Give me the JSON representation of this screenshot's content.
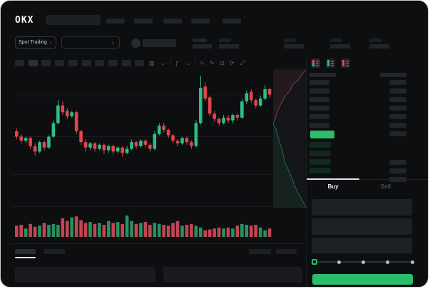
{
  "colors": {
    "window_bg": "#0d0e10",
    "accent_green": "#2abd6e",
    "candle_green": "#2ebd85",
    "candle_red": "#e0464f",
    "volume_green": "#279161",
    "volume_red": "#c44550",
    "grid": "#1a1c1f",
    "skeleton": "#222528",
    "text_primary": "#e8eaec",
    "text_muted": "#4a5056"
  },
  "header": {
    "logo_text": "OKX",
    "nav_item_count": 5,
    "search_placeholder": ""
  },
  "subheader": {
    "market_selector_label": "Spot Trading",
    "chevron": "⌄",
    "stat_block_count": 4
  },
  "chart_toolbar": {
    "timeframe_button_count": 10,
    "active_timeframe_index": 1,
    "icons": [
      {
        "name": "chart-type-candle-icon",
        "glyph": "▥"
      },
      {
        "name": "chevron-down-icon",
        "glyph": "⌄"
      },
      {
        "name": "divider"
      },
      {
        "name": "indicators-icon",
        "glyph": "ƒ"
      },
      {
        "name": "chevron-down-icon",
        "glyph": "⌄"
      },
      {
        "name": "divider"
      },
      {
        "name": "line-tool-icon",
        "glyph": "∿"
      },
      {
        "name": "draw-tool-icon",
        "glyph": "✎"
      },
      {
        "name": "screenshot-icon",
        "glyph": "⊡"
      },
      {
        "name": "refresh-icon",
        "glyph": "⟳"
      },
      {
        "name": "fullscreen-icon",
        "glyph": "⤢"
      }
    ]
  },
  "chart_data": {
    "type": "candlestick",
    "ylim": [
      28,
      100
    ],
    "grid": "horizontal-faint",
    "candles_ohlc": [
      [
        52,
        54,
        46,
        48
      ],
      [
        48,
        50,
        43,
        45
      ],
      [
        45,
        48,
        43,
        47
      ],
      [
        47,
        48,
        39,
        41
      ],
      [
        41,
        43,
        34,
        37
      ],
      [
        37,
        45,
        36,
        44
      ],
      [
        44,
        45,
        38,
        40
      ],
      [
        40,
        49,
        39,
        48
      ],
      [
        48,
        60,
        47,
        58
      ],
      [
        58,
        75,
        57,
        71
      ],
      [
        71,
        74,
        64,
        66
      ],
      [
        67,
        69,
        61,
        63
      ],
      [
        63,
        67,
        62,
        66
      ],
      [
        66,
        67,
        50,
        52
      ],
      [
        52,
        53,
        42,
        44
      ],
      [
        44,
        46,
        37,
        40
      ],
      [
        40,
        44,
        38,
        43
      ],
      [
        43,
        44,
        37,
        39
      ],
      [
        39,
        43,
        38,
        42
      ],
      [
        42,
        43,
        35,
        38
      ],
      [
        38,
        42,
        36,
        41
      ],
      [
        41,
        42,
        35,
        37
      ],
      [
        37,
        41,
        36,
        40
      ],
      [
        40,
        41,
        33,
        36
      ],
      [
        36,
        41,
        35,
        39
      ],
      [
        39,
        46,
        38,
        44
      ],
      [
        44,
        45,
        39,
        41
      ],
      [
        41,
        46,
        40,
        45
      ],
      [
        45,
        46,
        40,
        42
      ],
      [
        42,
        43,
        37,
        39
      ],
      [
        39,
        52,
        38,
        50
      ],
      [
        50,
        58,
        49,
        56
      ],
      [
        56,
        58,
        51,
        53
      ],
      [
        53,
        54,
        47,
        49
      ],
      [
        49,
        50,
        43,
        45
      ],
      [
        45,
        46,
        41,
        43
      ],
      [
        43,
        48,
        42,
        47
      ],
      [
        47,
        48,
        42,
        44
      ],
      [
        44,
        45,
        39,
        41
      ],
      [
        41,
        60,
        40,
        58
      ],
      [
        58,
        93,
        57,
        84
      ],
      [
        85,
        88,
        74,
        76
      ],
      [
        77,
        78,
        63,
        65
      ],
      [
        65,
        67,
        59,
        61
      ],
      [
        61,
        62,
        56,
        58
      ],
      [
        58,
        64,
        57,
        62
      ],
      [
        62,
        64,
        58,
        60
      ],
      [
        60,
        65,
        58,
        64
      ],
      [
        64,
        65,
        60,
        62
      ],
      [
        62,
        76,
        61,
        74
      ],
      [
        74,
        82,
        72,
        80
      ],
      [
        81,
        83,
        73,
        75
      ],
      [
        75,
        76,
        69,
        71
      ],
      [
        71,
        78,
        70,
        76
      ],
      [
        76,
        86,
        75,
        83
      ],
      [
        83,
        84,
        77,
        79
      ]
    ],
    "volume": [
      0.45,
      0.5,
      0.3,
      0.55,
      0.4,
      0.45,
      0.6,
      0.5,
      0.55,
      0.5,
      0.85,
      0.7,
      0.9,
      0.95,
      0.75,
      0.6,
      0.65,
      0.55,
      0.6,
      0.5,
      0.7,
      0.6,
      0.65,
      0.55,
      1.0,
      0.7,
      0.55,
      0.6,
      0.65,
      0.5,
      0.6,
      0.55,
      0.5,
      0.45,
      0.6,
      0.7,
      0.45,
      0.5,
      0.55,
      0.45,
      0.35,
      0.2,
      0.25,
      0.3,
      0.35,
      0.3,
      0.35,
      0.3,
      0.45,
      0.55,
      0.5,
      0.45,
      0.5,
      0.35,
      0.2,
      0.3
    ],
    "depth_asks": [
      [
        0,
        0
      ],
      [
        0.08,
        0.1
      ],
      [
        0.12,
        0.22
      ],
      [
        0.22,
        0.34
      ],
      [
        0.3,
        0.44
      ],
      [
        0.38,
        0.52
      ],
      [
        0.52,
        0.62
      ],
      [
        0.6,
        0.72
      ],
      [
        0.78,
        0.82
      ],
      [
        0.9,
        0.94
      ],
      [
        1,
        1
      ]
    ],
    "depth_bids": [
      [
        0,
        0
      ],
      [
        0.1,
        0.08
      ],
      [
        0.18,
        0.2
      ],
      [
        0.28,
        0.32
      ],
      [
        0.36,
        0.46
      ],
      [
        0.5,
        0.58
      ],
      [
        0.62,
        0.7
      ],
      [
        0.75,
        0.82
      ],
      [
        0.9,
        0.92
      ],
      [
        1,
        1
      ]
    ]
  },
  "order_book": {
    "view_toggles": [
      "book-both-icon",
      "book-bids-icon",
      "book-asks-icon"
    ],
    "ask_rows": [
      [
        1,
        1
      ],
      [
        1,
        1
      ],
      [
        1,
        1
      ],
      [
        1,
        1
      ],
      [
        1,
        1
      ],
      [
        1,
        1
      ]
    ],
    "last_price_has_amount_bar": true,
    "bid_rows": [
      [
        1,
        0
      ],
      [
        1,
        1
      ],
      [
        1,
        1
      ],
      [
        1,
        1
      ]
    ]
  },
  "order_panel": {
    "tabs": [
      {
        "label": "Buy",
        "active": true
      },
      {
        "label": "Sell",
        "active": false
      }
    ],
    "field_count": 3,
    "slider_stops": [
      0,
      25,
      50,
      75,
      100
    ],
    "slider_value": 0
  },
  "bottom_bar": {
    "tab_count": 2,
    "active_tab_index": 0,
    "right_control_count": 2,
    "panel_count": 2
  }
}
